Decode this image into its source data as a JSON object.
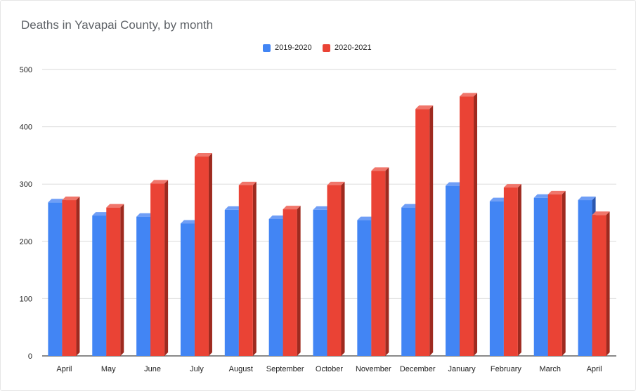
{
  "chart_data": {
    "type": "bar",
    "title": "Deaths in Yavapai County, by month",
    "xlabel": "",
    "ylabel": "",
    "categories": [
      "April",
      "May",
      "June",
      "July",
      "August",
      "September",
      "October",
      "November",
      "December",
      "January",
      "February",
      "March",
      "April"
    ],
    "series": [
      {
        "name": "2019-2020",
        "color": "#4285f4",
        "side_color": "#2a57b0",
        "top_color": "#6f9ef6",
        "values": [
          268,
          245,
          243,
          231,
          255,
          239,
          255,
          237,
          259,
          297,
          270,
          276,
          272
        ]
      },
      {
        "name": "2020-2021",
        "color": "#ea4335",
        "side_color": "#9e2a1f",
        "top_color": "#f0766b",
        "values": [
          272,
          259,
          301,
          348,
          298,
          256,
          298,
          323,
          431,
          453,
          294,
          282,
          246
        ]
      }
    ],
    "ylim": [
      0,
      500
    ],
    "yticks": [
      0,
      100,
      200,
      300,
      400,
      500
    ],
    "grid": true,
    "legend_position": "top-center"
  }
}
